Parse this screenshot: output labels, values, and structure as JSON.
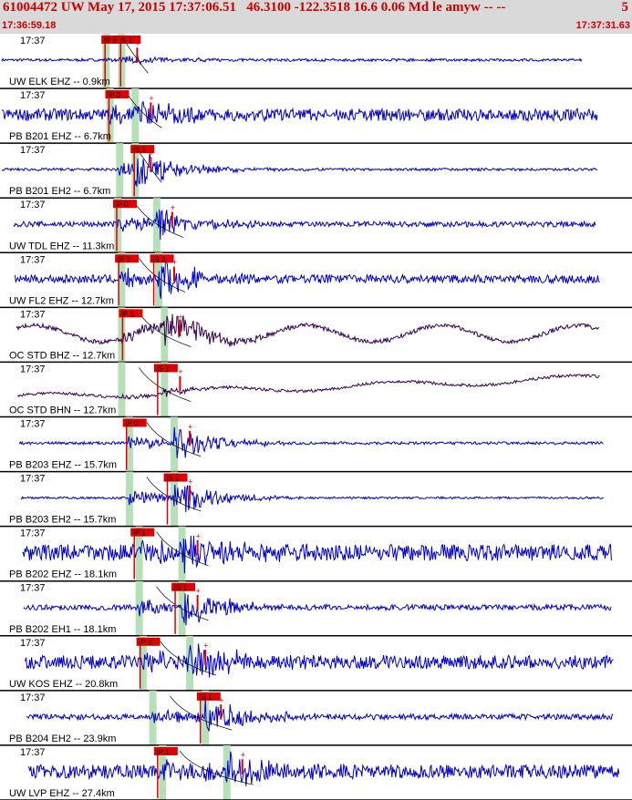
{
  "header": {
    "title": "61004472 UW May 17, 2015 17:37:06.51   46.3100 -122.3518 16.6 0.06 Md le amyw -- --",
    "right_mark": "5",
    "start_time": "17:36:59.18",
    "end_time": "17:37:31.63"
  },
  "colors": {
    "header_bg": "#d9d9d9",
    "header_text": "#cc0000",
    "trace": "#0000cc",
    "trace_broadband": "#330055",
    "pick": "#dd0000",
    "window": "#b8e0b8",
    "separator": "#000000"
  },
  "chart_data": {
    "type": "seismogram",
    "x_unit": "seconds after 17:36:59.18",
    "xlim": [
      0,
      32.45
    ],
    "predicted_arrival_curves": true,
    "traces": [
      {
        "label": "UW ELK EHZ -- 0.9km",
        "time_tag": "17:37",
        "distance_km": 0.9,
        "color": "trace",
        "amp": 0.12,
        "noise": 0.05,
        "slow": 0,
        "p": 5.4,
        "s": 6.2,
        "end": 29.9,
        "picks": [
          {
            "text": "iP 0",
            "t": 5.3
          },
          {
            "text": "iS 1",
            "t": 6.1
          }
        ]
      },
      {
        "label": "PB B201 EHZ -- 6.7km",
        "time_tag": "17:37",
        "distance_km": 6.7,
        "color": "trace",
        "amp": 0.4,
        "noise": 0.22,
        "slow": 0,
        "p": 5.6,
        "s": 6.9,
        "end": 30.7,
        "picks": [
          {
            "text": "iP 0",
            "t": 5.5
          }
        ]
      },
      {
        "label": "PB B201 EH2 -- 6.7km",
        "time_tag": "17:37",
        "distance_km": 6.7,
        "color": "trace",
        "amp": 0.5,
        "noise": 0.05,
        "slow": 0,
        "p": 6.1,
        "s": 6.9,
        "end": 30.7,
        "picks": [
          {
            "text": "iS 1",
            "t": 6.8
          }
        ]
      },
      {
        "label": "UW TDL EHZ -- 11.3km",
        "time_tag": "17:37",
        "distance_km": 11.3,
        "color": "trace",
        "amp": 0.45,
        "noise": 0.1,
        "slow": 0,
        "p": 6.0,
        "s": 8.0,
        "end": 30.6,
        "picks": [
          {
            "text": "iP 0",
            "t": 5.9
          }
        ]
      },
      {
        "label": "UW FL2 EHZ -- 12.7km",
        "time_tag": "17:37",
        "distance_km": 12.7,
        "color": "trace",
        "amp": 0.55,
        "noise": 0.15,
        "slow": 0,
        "p": 6.2,
        "s": 8.1,
        "end": 30.8,
        "picks": [
          {
            "text": "iP 1",
            "t": 6.0
          },
          {
            "text": "iS 3",
            "t": 7.8
          }
        ]
      },
      {
        "label": "OC STD BHZ -- 12.7km",
        "time_tag": "17:37",
        "distance_km": 12.7,
        "color": "trace_broadband",
        "amp": 0.5,
        "noise": 0.08,
        "slow": 0.3,
        "p": 6.2,
        "s": 8.4,
        "end": 30.8,
        "picks": [
          {
            "text": "iP 1",
            "t": 6.2
          }
        ]
      },
      {
        "label": "OC STD BHN -- 12.7km",
        "time_tag": "17:37",
        "distance_km": 12.7,
        "color": "trace_broadband",
        "amp": 0.12,
        "noise": 0.05,
        "slow": 0.35,
        "p": 6.2,
        "s": 8.4,
        "end": 30.8,
        "picks": [
          {
            "text": "iS 1",
            "t": 8.0
          }
        ]
      },
      {
        "label": "PB B203 EHZ -- 15.7km",
        "time_tag": "17:37",
        "distance_km": 15.7,
        "color": "trace",
        "amp": 0.5,
        "noise": 0.05,
        "slow": 0,
        "p": 6.6,
        "s": 8.9,
        "end": 31.0,
        "picks": [
          {
            "text": "iP 0",
            "t": 6.4
          }
        ]
      },
      {
        "label": "PB B203 EH2 -- 15.7km",
        "time_tag": "17:37",
        "distance_km": 15.7,
        "color": "trace",
        "amp": 0.5,
        "noise": 0.04,
        "slow": 0,
        "p": 6.6,
        "s": 8.9,
        "end": 31.0,
        "picks": [
          {
            "text": "iS 1",
            "t": 8.5
          }
        ]
      },
      {
        "label": "PB B202 EHZ -- 18.1km",
        "time_tag": "17:37",
        "distance_km": 18.1,
        "color": "trace",
        "amp": 0.45,
        "noise": 0.3,
        "slow": 0,
        "p": 7.1,
        "s": 9.3,
        "end": 31.4,
        "picks": [
          {
            "text": "iP 1",
            "t": 6.8
          }
        ]
      },
      {
        "label": "PB B202 EH1 -- 18.1km",
        "time_tag": "17:37",
        "distance_km": 18.1,
        "color": "trace",
        "amp": 0.5,
        "noise": 0.1,
        "slow": 0,
        "p": 7.1,
        "s": 9.3,
        "end": 31.4,
        "picks": [
          {
            "text": "iS 1",
            "t": 8.9
          }
        ]
      },
      {
        "label": "UW KOS EHZ -- 20.8km",
        "time_tag": "17:37",
        "distance_km": 20.8,
        "color": "trace",
        "amp": 0.55,
        "noise": 0.25,
        "slow": 0,
        "p": 7.3,
        "s": 9.7,
        "end": 31.5,
        "picks": [
          {
            "text": "iP 1",
            "t": 7.1
          }
        ]
      },
      {
        "label": "PB B204 EH2 -- 23.9km",
        "time_tag": "17:37",
        "distance_km": 23.9,
        "color": "trace",
        "amp": 0.5,
        "noise": 0.1,
        "slow": 0,
        "p": 7.8,
        "s": 10.5,
        "end": 31.5,
        "picks": [
          {
            "text": "iS 1",
            "t": 10.2
          }
        ]
      },
      {
        "label": "UW LVP EHZ -- 27.4km",
        "time_tag": "17:37",
        "distance_km": 27.4,
        "color": "trace",
        "amp": 0.5,
        "noise": 0.25,
        "slow": 0,
        "p": 8.3,
        "s": 11.6,
        "end": 31.8,
        "picks": [
          {
            "text": "iP 1",
            "t": 8.0
          }
        ]
      }
    ]
  }
}
